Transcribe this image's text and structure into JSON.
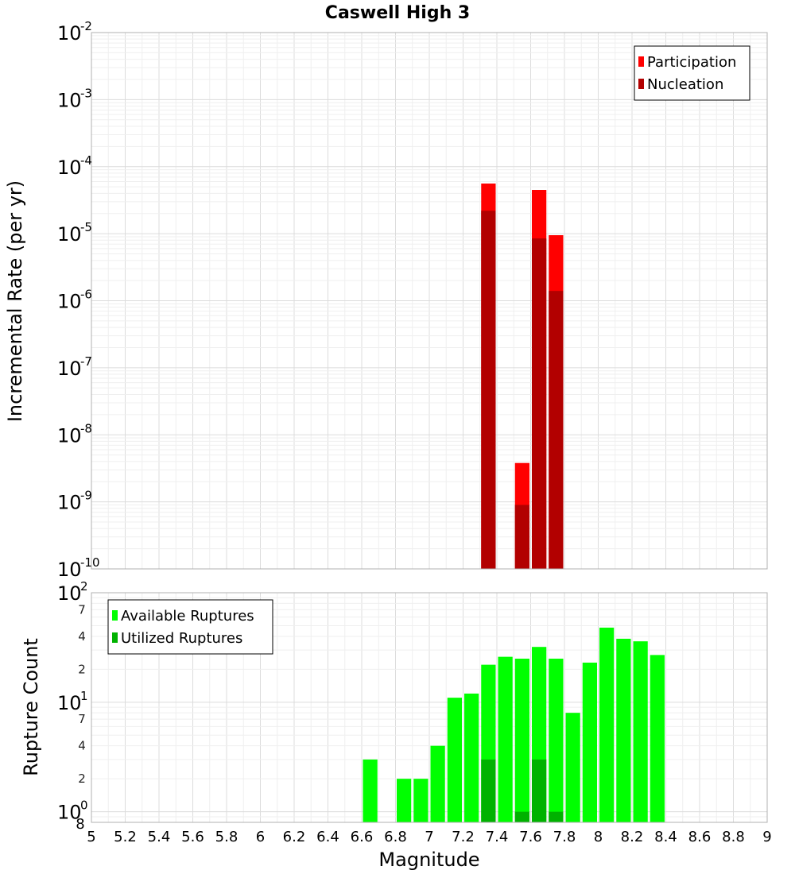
{
  "title": "Caswell High 3",
  "x_label": "Magnitude",
  "x_ticks": [
    "5",
    "5.2",
    "5.4",
    "5.6",
    "5.8",
    "6",
    "6.2",
    "6.4",
    "6.6",
    "6.8",
    "7",
    "7.2",
    "7.4",
    "7.6",
    "7.8",
    "8",
    "8.2",
    "8.4",
    "8.6",
    "8.8",
    "9"
  ],
  "colors": {
    "participation": "#ff0000",
    "nucleation": "#b20000",
    "available": "#00ff00",
    "utilized": "#00b200"
  },
  "chart_data": [
    {
      "type": "bar",
      "title": "Caswell High 3",
      "xlabel": "Magnitude",
      "ylabel": "Incremental Rate (per yr)",
      "xlim": [
        5,
        9
      ],
      "ylim": [
        1e-10,
        0.01
      ],
      "yscale": "log",
      "y_tick_exponents": [
        "-10",
        "-9",
        "-8",
        "-7",
        "-6",
        "-5",
        "-4",
        "-3",
        "-2"
      ],
      "y_tick_base": "10",
      "legend": [
        "Participation",
        "Nucleation"
      ],
      "legend_position": "top-right",
      "bin_width": 0.1,
      "series": [
        {
          "name": "Participation",
          "x": [
            7.35,
            7.55,
            7.65,
            7.75
          ],
          "values": [
            5.6e-05,
            3.8e-09,
            4.5e-05,
            9.5e-06
          ]
        },
        {
          "name": "Nucleation",
          "x": [
            7.35,
            7.55,
            7.65,
            7.75
          ],
          "values": [
            2.2e-05,
            9e-10,
            8.5e-06,
            1.4e-06
          ]
        }
      ]
    },
    {
      "type": "bar",
      "xlabel": "Magnitude",
      "ylabel": "Rupture Count",
      "xlim": [
        5,
        9
      ],
      "ylim": [
        0.8,
        100
      ],
      "yscale": "log",
      "y_major_ticks": [
        {
          "base": "10",
          "exp": "0",
          "value": 1
        },
        {
          "base": "10",
          "exp": "1",
          "value": 10
        },
        {
          "base": "10",
          "exp": "2",
          "value": 100
        }
      ],
      "y_minor_ticks": [
        {
          "label": "2",
          "value": 2
        },
        {
          "label": "4",
          "value": 4
        },
        {
          "label": "7",
          "value": 7
        },
        {
          "label": "2",
          "value": 20
        },
        {
          "label": "4",
          "value": 40
        },
        {
          "label": "7",
          "value": 70
        }
      ],
      "y_bottom_label": "8",
      "legend": [
        "Available Ruptures",
        "Utilized Ruptures"
      ],
      "legend_position": "top-left",
      "bin_width": 0.1,
      "series": [
        {
          "name": "Available Ruptures",
          "x": [
            6.65,
            6.85,
            6.95,
            7.05,
            7.15,
            7.25,
            7.35,
            7.45,
            7.55,
            7.65,
            7.75,
            7.85,
            7.95,
            8.05,
            8.15,
            8.25,
            8.35
          ],
          "values": [
            3,
            2,
            2,
            4,
            11,
            12,
            22,
            26,
            25,
            32,
            25,
            8,
            23,
            48,
            38,
            36,
            27
          ]
        },
        {
          "name": "Utilized Ruptures",
          "x": [
            7.35,
            7.55,
            7.65,
            7.75
          ],
          "values": [
            3,
            1,
            3,
            1
          ]
        }
      ]
    }
  ]
}
